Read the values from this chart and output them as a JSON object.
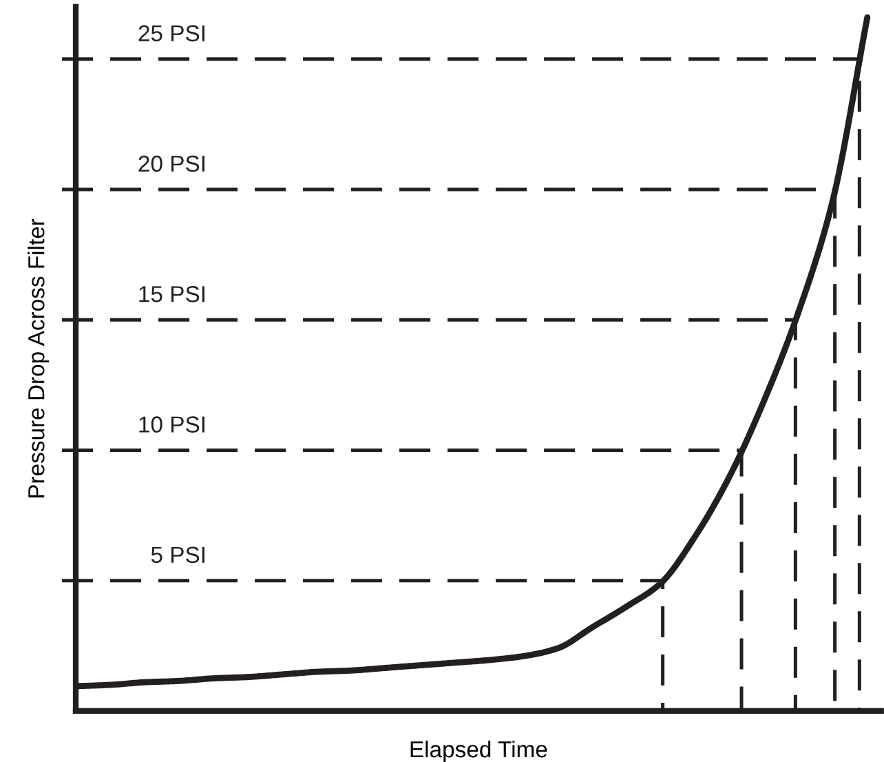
{
  "chart_data": {
    "type": "line",
    "xlabel": "Elapsed Time",
    "ylabel": "Pressure Drop Across Filter",
    "categories": [
      null,
      null,
      null,
      null,
      null,
      null,
      null,
      null,
      null,
      null,
      null,
      null,
      null,
      null,
      null,
      null,
      null,
      null,
      null,
      null,
      null,
      null,
      null,
      null
    ],
    "series": [
      {
        "color": "#231f20",
        "values": [
          0.95,
          1.0,
          1.1,
          1.15,
          1.25,
          1.3,
          1.4,
          1.5,
          1.55,
          1.65,
          1.75,
          1.85,
          1.95,
          2.1,
          2.4,
          3.2,
          4.0,
          4.9,
          6.7,
          9.0,
          11.9,
          15.3,
          19.6,
          26.6
        ]
      }
    ],
    "ylim": [
      0,
      27
    ],
    "grid": false,
    "legend": false,
    "marker": "none",
    "line_style": "solid",
    "ref_lines": [
      {
        "axis": "y",
        "value": 5,
        "label": "5 PSI",
        "line_style": "dashed",
        "color": "#231f20"
      },
      {
        "axis": "y",
        "value": 10,
        "label": "10 PSI",
        "line_style": "dashed",
        "color": "#231f20"
      },
      {
        "axis": "y",
        "value": 15,
        "label": "15 PSI",
        "line_style": "dashed",
        "color": "#231f20"
      },
      {
        "axis": "y",
        "value": 20,
        "label": "20 PSI",
        "line_style": "dashed",
        "color": "#231f20"
      },
      {
        "axis": "y",
        "value": 25,
        "label": "25 PSI",
        "line_style": "dashed",
        "color": "#231f20"
      }
    ]
  }
}
